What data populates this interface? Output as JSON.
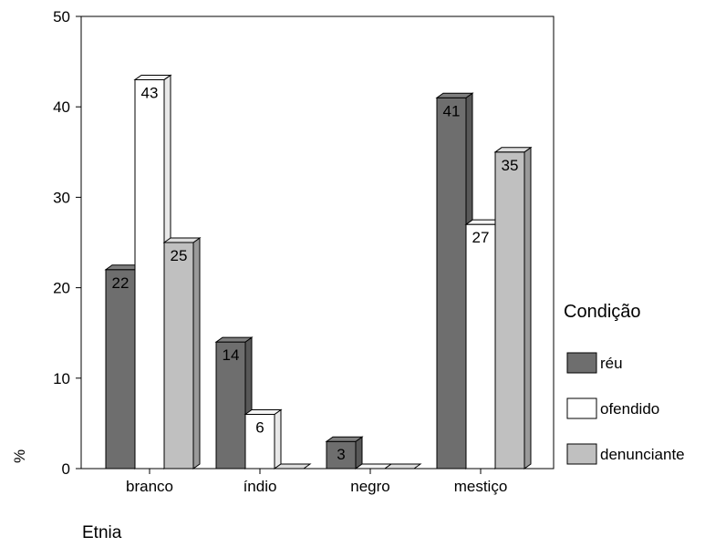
{
  "chart_data": {
    "type": "bar",
    "title": "",
    "xlabel": "Etnia",
    "ylabel": "%",
    "ylim": [
      0,
      50
    ],
    "yticks": [
      0,
      10,
      20,
      30,
      40,
      50
    ],
    "grid": false,
    "legend_placement": "right",
    "legend_title": "Condição",
    "categories": [
      "branco",
      "índio",
      "negro",
      "mestiço"
    ],
    "series": [
      {
        "name": "réu",
        "values": [
          22,
          14,
          3,
          41
        ],
        "color": "#6e6e6e"
      },
      {
        "name": "ofendido",
        "values": [
          43,
          6,
          0,
          27
        ],
        "color": "#ffffff"
      },
      {
        "name": "denunciante",
        "values": [
          25,
          0,
          0,
          35
        ],
        "color": "#c0c0c0"
      }
    ]
  }
}
